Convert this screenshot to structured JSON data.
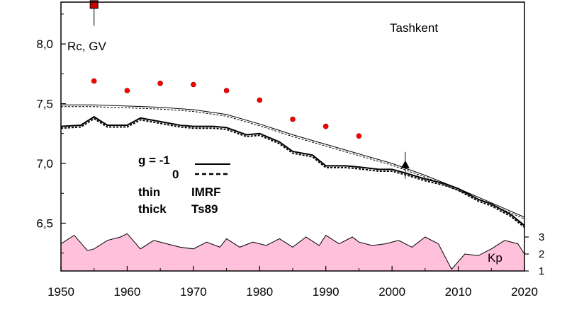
{
  "chart_data": {
    "type": "line",
    "title": "",
    "station_label": "Tashkent",
    "ylabel": "Rc, GV",
    "xlabel": "",
    "xlim": [
      1950,
      2020
    ],
    "ylim": [
      6.1,
      8.35
    ],
    "x_ticks": [
      "1950",
      "1960",
      "1970",
      "1980",
      "1990",
      "2000",
      "2010",
      "2020"
    ],
    "y_ticks": [
      {
        "value": 6.5,
        "label": "6,5"
      },
      {
        "value": 7.0,
        "label": "7,0"
      },
      {
        "value": 7.5,
        "label": "7,5"
      },
      {
        "value": 8.0,
        "label": "8,0"
      }
    ],
    "kp_axis": {
      "label": "Kp",
      "ticks": [
        {
          "value": 1,
          "label": "1"
        },
        {
          "value": 2,
          "label": "2"
        },
        {
          "value": 3,
          "label": "3"
        }
      ],
      "fill_color": "#ffc0db"
    },
    "legend": {
      "g_minus1": "g  = -1",
      "g_zero": "0",
      "thin_label": "thin",
      "thick_label": "thick",
      "imrf_label": "IMRF",
      "ts89_label": "Ts89"
    },
    "series": [
      {
        "style": "thin",
        "x": [
          1950,
          1955,
          1960,
          1965,
          1970,
          1975,
          1980,
          1985,
          1990,
          1995,
          2000,
          2005,
          2010,
          2015,
          2020
        ],
        "values": [
          7.49,
          7.49,
          7.48,
          7.47,
          7.45,
          7.41,
          7.33,
          7.24,
          7.16,
          7.08,
          7.0,
          6.9,
          6.79,
          6.67,
          6.55
        ]
      },
      {
        "style": "thick",
        "x": [
          1950,
          1953,
          1955,
          1957,
          1960,
          1962,
          1965,
          1968,
          1970,
          1973,
          1975,
          1978,
          1980,
          1983,
          1985,
          1988,
          1990,
          1993,
          1995,
          1998,
          2000,
          2002,
          2005,
          2008,
          2010,
          2013,
          2015,
          2018,
          2020
        ],
        "values": [
          7.31,
          7.32,
          7.39,
          7.32,
          7.32,
          7.38,
          7.35,
          7.32,
          7.31,
          7.31,
          7.3,
          7.24,
          7.25,
          7.18,
          7.1,
          7.07,
          6.98,
          6.98,
          6.97,
          6.95,
          6.95,
          6.92,
          6.87,
          6.83,
          6.79,
          6.7,
          6.66,
          6.57,
          6.48
        ]
      }
    ],
    "observations": {
      "marker": "red-circle",
      "color": "#ff0000",
      "x": [
        1955,
        1960,
        1965,
        1970,
        1975,
        1980,
        1985,
        1990,
        1995
      ],
      "values": [
        7.69,
        7.61,
        7.67,
        7.66,
        7.61,
        7.53,
        7.37,
        7.31,
        7.23
      ]
    },
    "special_points": [
      {
        "marker": "triangle",
        "color": "#000000",
        "x": 2002,
        "value": 6.99
      },
      {
        "marker": "square",
        "color": "#cc0000",
        "x": 1955,
        "value": 8.33
      }
    ],
    "kp_series": {
      "x": [
        1950,
        1952,
        1954,
        1955,
        1957,
        1959,
        1960,
        1962,
        1964,
        1966,
        1968,
        1970,
        1972,
        1974,
        1975,
        1977,
        1979,
        1981,
        1983,
        1985,
        1987,
        1989,
        1990,
        1992,
        1994,
        1995,
        1997,
        1999,
        2001,
        2003,
        2005,
        2007,
        2009,
        2011,
        2013,
        2015,
        2017,
        2019,
        2020
      ],
      "values": [
        2.6,
        3.1,
        2.2,
        2.3,
        2.8,
        3.0,
        3.2,
        2.3,
        2.8,
        2.6,
        2.4,
        2.3,
        2.7,
        2.4,
        2.9,
        2.4,
        2.7,
        2.5,
        2.9,
        2.4,
        3.0,
        2.5,
        3.1,
        2.6,
        3.0,
        2.7,
        2.5,
        2.6,
        2.8,
        2.4,
        3.0,
        2.6,
        1.1,
        2.0,
        1.9,
        2.3,
        2.8,
        2.6,
        2.0
      ]
    }
  }
}
